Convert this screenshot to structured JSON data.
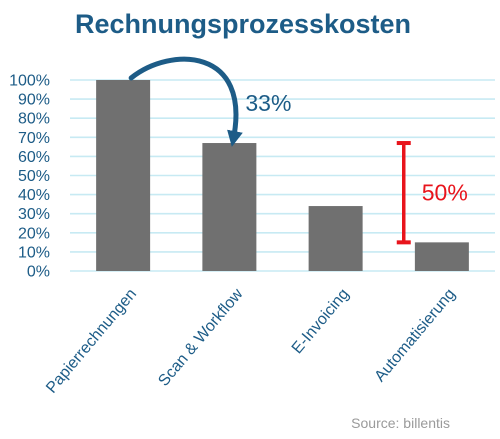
{
  "chart_data": {
    "type": "bar",
    "title": "Rechnungsprozesskosten",
    "categories": [
      "Papierrechnungen",
      "Scan & Workflow",
      "E-Invoicing",
      "Automatisierung"
    ],
    "values": [
      100,
      67,
      34,
      15
    ],
    "ylim": [
      0,
      100
    ],
    "yticks": [
      "0%",
      "10%",
      "20%",
      "30%",
      "40%",
      "50%",
      "60%",
      "70%",
      "80%",
      "90%",
      "100%"
    ],
    "grid": true,
    "annotations": {
      "arrow_label": "33%",
      "range_label": "50%",
      "range_from": 15,
      "range_to": 67
    },
    "source": "Source: billentis",
    "colors": {
      "title": "#1d5c87",
      "bar": "#707070",
      "grid": "#c7eaf3",
      "arrow": "#1d5c87",
      "arrow_label": "#1d5c87",
      "range": "#e8141c",
      "axis_text": "#1d5c87",
      "source": "#9a9a9a"
    }
  }
}
